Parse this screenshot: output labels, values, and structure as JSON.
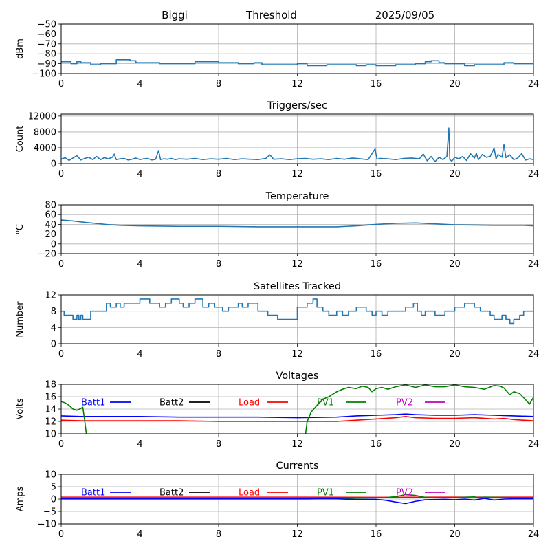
{
  "header": {
    "station": "Biggi",
    "subtitle": "Threshold",
    "date": "2025/09/05"
  },
  "chart_data": [
    {
      "id": "threshold",
      "type": "line",
      "title": "",
      "xlabel": "",
      "ylabel": "dBm",
      "xlim": [
        0,
        24
      ],
      "ylim": [
        -100,
        -50
      ],
      "xticks": [
        0,
        4,
        8,
        12,
        16,
        20,
        24
      ],
      "yticks": [
        -100,
        -90,
        -80,
        -70,
        -60,
        -50
      ],
      "ytick_labels": [
        "−100",
        "−90",
        "−80",
        "−70",
        "−60",
        "−50"
      ],
      "grid": true,
      "step": true,
      "series": [
        {
          "color": "#1f77b4",
          "x": [
            0,
            0.5,
            0.8,
            1.0,
            1.5,
            2.0,
            2.5,
            2.8,
            3.2,
            3.5,
            3.8,
            4.2,
            5.0,
            6.0,
            6.8,
            7.5,
            8.0,
            8.5,
            9.0,
            9.5,
            9.8,
            10.2,
            10.8,
            11.5,
            12.0,
            12.5,
            13.0,
            13.5,
            14.0,
            14.5,
            15.0,
            15.5,
            16.0,
            17.0,
            18.0,
            18.5,
            18.8,
            19.2,
            19.5,
            20.0,
            20.5,
            21.0,
            22.0,
            22.5,
            23.0,
            24.0
          ],
          "y": [
            -88,
            -90,
            -88,
            -89,
            -91,
            -90,
            -90,
            -86,
            -86,
            -87,
            -89,
            -89,
            -90,
            -90,
            -88,
            -88,
            -89,
            -89,
            -90,
            -90,
            -89,
            -91,
            -91,
            -91,
            -90,
            -92,
            -92,
            -91,
            -91,
            -91,
            -92,
            -91,
            -92,
            -91,
            -90,
            -88,
            -87,
            -89,
            -90,
            -90,
            -92,
            -91,
            -91,
            -89,
            -90,
            -90
          ]
        }
      ]
    },
    {
      "id": "triggers",
      "type": "line",
      "title": "Triggers/sec",
      "xlabel": "",
      "ylabel": "Count",
      "xlim": [
        0,
        24
      ],
      "ylim": [
        0,
        12500
      ],
      "xticks": [
        0,
        4,
        8,
        12,
        16,
        20,
        24
      ],
      "yticks": [
        0,
        4000,
        8000,
        12000
      ],
      "ytick_labels": [
        "0",
        "4000",
        "8000",
        "12000"
      ],
      "grid": true,
      "step": false,
      "series": [
        {
          "color": "#1f77b4",
          "x": [
            0,
            0.2,
            0.4,
            0.6,
            0.8,
            1.0,
            1.2,
            1.4,
            1.6,
            1.8,
            2.0,
            2.2,
            2.4,
            2.6,
            2.7,
            2.8,
            3.0,
            3.2,
            3.4,
            3.6,
            3.8,
            4.0,
            4.2,
            4.4,
            4.6,
            4.8,
            4.95,
            5.05,
            5.2,
            5.4,
            5.6,
            5.8,
            6.0,
            6.4,
            6.8,
            7.2,
            7.6,
            8.0,
            8.4,
            8.8,
            9.2,
            9.6,
            10.0,
            10.4,
            10.6,
            10.8,
            11.2,
            11.6,
            12.0,
            12.4,
            12.8,
            13.2,
            13.6,
            14.0,
            14.4,
            14.8,
            15.2,
            15.6,
            15.95,
            16.05,
            16.2,
            16.6,
            17.0,
            17.4,
            17.8,
            18.2,
            18.4,
            18.6,
            18.8,
            19.0,
            19.2,
            19.4,
            19.6,
            19.7,
            19.75,
            19.85,
            20.0,
            20.2,
            20.4,
            20.6,
            20.8,
            21.0,
            21.1,
            21.2,
            21.4,
            21.6,
            21.8,
            22.0,
            22.1,
            22.2,
            22.4,
            22.5,
            22.6,
            22.8,
            23.0,
            23.2,
            23.4,
            23.6,
            23.8,
            24.0
          ],
          "y": [
            1100,
            1500,
            800,
            1400,
            2000,
            900,
            1300,
            1600,
            1000,
            1800,
            1000,
            1500,
            1200,
            1600,
            2400,
            1000,
            1200,
            1300,
            900,
            1100,
            1400,
            1000,
            1200,
            1300,
            900,
            1100,
            3300,
            1000,
            1200,
            1100,
            1300,
            1000,
            1200,
            1100,
            1300,
            1000,
            1200,
            1100,
            1300,
            1000,
            1200,
            1100,
            1000,
            1300,
            2200,
            1100,
            1200,
            1000,
            1200,
            1300,
            1100,
            1200,
            1000,
            1300,
            1100,
            1400,
            1200,
            1000,
            3700,
            1100,
            1300,
            1200,
            1000,
            1300,
            1400,
            1200,
            2400,
            700,
            1800,
            500,
            1600,
            1000,
            1800,
            9000,
            1000,
            600,
            1600,
            1200,
            1800,
            800,
            2500,
            1400,
            2600,
            1000,
            2300,
            1600,
            1800,
            3900,
            1200,
            2300,
            1600,
            4800,
            1500,
            2200,
            1000,
            1400,
            2500,
            900,
            1200,
            1000
          ]
        }
      ]
    },
    {
      "id": "temperature",
      "type": "line",
      "title": "Temperature",
      "xlabel": "",
      "ylabel": "°C",
      "ylabel_sup": "o",
      "ylabel_main": "C",
      "xlim": [
        0,
        24
      ],
      "ylim": [
        -20,
        80
      ],
      "xticks": [
        0,
        4,
        8,
        12,
        16,
        20,
        24
      ],
      "yticks": [
        -20,
        0,
        20,
        40,
        60,
        80
      ],
      "ytick_labels": [
        "−20",
        "0",
        "20",
        "40",
        "60",
        "80"
      ],
      "grid": true,
      "step": false,
      "series": [
        {
          "color": "#1f77b4",
          "x": [
            0,
            0.3,
            0.6,
            1.0,
            1.5,
            2.0,
            2.5,
            3.0,
            4.0,
            6.0,
            8.0,
            10.0,
            12.0,
            14.0,
            15.0,
            16.0,
            16.5,
            17.0,
            18.0,
            19.0,
            20.0,
            22.0,
            23.5,
            24.0
          ],
          "y": [
            49,
            48,
            47,
            45,
            43,
            41,
            39,
            38,
            37,
            36,
            36,
            35,
            35,
            35,
            37,
            40,
            41,
            42,
            43,
            41,
            39,
            38,
            38,
            37
          ]
        }
      ]
    },
    {
      "id": "satellites",
      "type": "line",
      "title": "Satellites Tracked",
      "xlabel": "",
      "ylabel": "Number",
      "xlim": [
        0,
        24
      ],
      "ylim": [
        0,
        12
      ],
      "xticks": [
        0,
        4,
        8,
        12,
        16,
        20,
        24
      ],
      "yticks": [
        0,
        4,
        8,
        12
      ],
      "ytick_labels": [
        "0",
        "4",
        "8",
        "12"
      ],
      "grid": true,
      "step": true,
      "series": [
        {
          "color": "#1f77b4",
          "x": [
            0,
            0.15,
            0.6,
            0.8,
            0.9,
            1.0,
            1.1,
            1.5,
            2.0,
            2.3,
            2.5,
            2.8,
            3.0,
            3.2,
            3.5,
            4.0,
            4.5,
            5.0,
            5.3,
            5.6,
            6.0,
            6.2,
            6.5,
            6.8,
            7.2,
            7.5,
            7.8,
            8.2,
            8.5,
            8.8,
            9.0,
            9.2,
            9.5,
            10.0,
            10.5,
            11.0,
            11.5,
            12.0,
            12.5,
            12.8,
            13.0,
            13.3,
            13.6,
            14.0,
            14.3,
            14.6,
            15.0,
            15.5,
            15.8,
            16.0,
            16.3,
            16.6,
            17.0,
            17.5,
            17.9,
            18.1,
            18.3,
            18.5,
            19.0,
            19.5,
            20.0,
            20.5,
            21.0,
            21.3,
            21.8,
            22.0,
            22.4,
            22.6,
            22.8,
            23.0,
            23.3,
            23.5,
            24.0
          ],
          "y": [
            8,
            7,
            6,
            7,
            6,
            7,
            6,
            8,
            8,
            10,
            9,
            10,
            9,
            10,
            10,
            11,
            10,
            9,
            10,
            11,
            10,
            9,
            10,
            11,
            9,
            10,
            9,
            8,
            9,
            9,
            10,
            9,
            10,
            8,
            7,
            6,
            6,
            9,
            10,
            11,
            9,
            8,
            7,
            8,
            7,
            8,
            9,
            8,
            7,
            8,
            7,
            8,
            8,
            9,
            10,
            8,
            7,
            8,
            7,
            8,
            9,
            10,
            9,
            8,
            7,
            6,
            7,
            6,
            5,
            6,
            7,
            8,
            8
          ]
        }
      ]
    },
    {
      "id": "voltages",
      "type": "line",
      "title": "Voltages",
      "xlabel": "",
      "ylabel": "Volts",
      "xlim": [
        0,
        24
      ],
      "ylim": [
        10,
        18
      ],
      "xticks": [
        0,
        4,
        8,
        12,
        16,
        20,
        24
      ],
      "yticks": [
        10,
        12,
        14,
        16,
        18
      ],
      "ytick_labels": [
        "10",
        "12",
        "14",
        "16",
        "18"
      ],
      "grid": true,
      "step": false,
      "legend": [
        {
          "name": "Batt1",
          "color": "#0000ff"
        },
        {
          "name": "Batt2",
          "color": "#000000"
        },
        {
          "name": "Load",
          "color": "#ff0000"
        },
        {
          "name": "PV1",
          "color": "#008000"
        },
        {
          "name": "PV2",
          "color": "#c000c0"
        }
      ],
      "series": [
        {
          "name": "Batt1",
          "color": "#0000ff",
          "x": [
            0,
            1,
            2,
            4,
            6,
            8,
            10,
            12,
            14,
            15,
            16,
            17,
            17.5,
            18,
            19,
            20,
            21,
            22,
            23,
            24
          ],
          "y": [
            12.9,
            12.8,
            12.8,
            12.8,
            12.7,
            12.7,
            12.7,
            12.6,
            12.7,
            12.9,
            13.0,
            13.1,
            13.2,
            13.1,
            13.0,
            13.0,
            13.1,
            13.0,
            12.9,
            12.8
          ]
        },
        {
          "name": "Load",
          "color": "#ff0000",
          "x": [
            0,
            1,
            2,
            4,
            6,
            8,
            10,
            12,
            14,
            15,
            16,
            17,
            17.5,
            18,
            19,
            20,
            21,
            22,
            22.5,
            23,
            24
          ],
          "y": [
            12.2,
            12.1,
            12.1,
            12.1,
            12.1,
            12.0,
            12.0,
            12.0,
            12.0,
            12.2,
            12.4,
            12.6,
            12.8,
            12.6,
            12.5,
            12.5,
            12.6,
            12.4,
            12.5,
            12.3,
            12.1
          ]
        },
        {
          "name": "PV1",
          "color": "#008000",
          "x": [
            0,
            0.2,
            0.4,
            0.6,
            0.8,
            1.0,
            1.1,
            1.2,
            1.3,
            12.4,
            12.5,
            12.7,
            13.0,
            13.3,
            13.6,
            14.0,
            14.3,
            14.6,
            15.0,
            15.3,
            15.6,
            15.8,
            16.0,
            16.3,
            16.6,
            17.0,
            17.5,
            18.0,
            18.5,
            19.0,
            19.5,
            20.0,
            20.5,
            21.0,
            21.5,
            22.0,
            22.3,
            22.5,
            22.8,
            23.0,
            23.3,
            23.6,
            23.8,
            24.0
          ],
          "y": [
            15.2,
            15.0,
            14.6,
            14.0,
            13.8,
            14.1,
            14.3,
            12.0,
            9.5,
            9.5,
            12.0,
            13.5,
            14.6,
            15.6,
            16.0,
            16.8,
            17.2,
            17.5,
            17.3,
            17.7,
            17.5,
            16.8,
            17.3,
            17.5,
            17.2,
            17.6,
            17.9,
            17.5,
            17.9,
            17.6,
            17.6,
            17.9,
            17.6,
            17.5,
            17.2,
            17.8,
            17.7,
            17.4,
            16.3,
            16.8,
            16.5,
            15.5,
            14.8,
            15.9
          ]
        }
      ]
    },
    {
      "id": "currents",
      "type": "line",
      "title": "Currents",
      "xlabel": "",
      "ylabel": "Amps",
      "xlim": [
        0,
        24
      ],
      "ylim": [
        -10,
        10
      ],
      "xticks": [
        0,
        4,
        8,
        12,
        16,
        20,
        24
      ],
      "yticks": [
        -10,
        -5,
        0,
        5,
        10
      ],
      "ytick_labels": [
        "−10",
        "−5",
        "0",
        "5",
        "10"
      ],
      "grid": true,
      "step": false,
      "legend": [
        {
          "name": "Batt1",
          "color": "#0000ff"
        },
        {
          "name": "Batt2",
          "color": "#000000"
        },
        {
          "name": "Load",
          "color": "#ff0000"
        },
        {
          "name": "PV1",
          "color": "#008000"
        },
        {
          "name": "PV2",
          "color": "#c000c0"
        }
      ],
      "series": [
        {
          "name": "Load",
          "color": "#ff0000",
          "x": [
            0,
            4,
            8,
            12,
            16,
            20,
            24
          ],
          "y": [
            0.8,
            0.8,
            0.8,
            0.8,
            0.7,
            0.8,
            0.8
          ]
        },
        {
          "name": "PV1",
          "color": "#008000",
          "x": [
            0,
            12.5,
            16,
            16.5,
            17,
            17.5,
            18,
            18.5,
            19,
            20,
            21,
            21.2,
            21.5,
            22,
            23,
            24
          ],
          "y": [
            0,
            0,
            0.5,
            0.6,
            1.0,
            1.8,
            1.5,
            0.7,
            0.6,
            0.6,
            0.9,
            0.6,
            0.8,
            0.7,
            0.6,
            0.5
          ]
        },
        {
          "name": "Batt1",
          "color": "#0000ff",
          "x": [
            0,
            4,
            8,
            12,
            14,
            15,
            16,
            16.5,
            17,
            17.5,
            18,
            18.5,
            19,
            19.5,
            20,
            20.5,
            21,
            21.5,
            22,
            22.5,
            23,
            24
          ],
          "y": [
            0.2,
            0.2,
            0.2,
            0.2,
            0.1,
            -0.2,
            -0.1,
            -0.5,
            -1.2,
            -1.8,
            -0.9,
            -0.3,
            -0.2,
            -0.1,
            -0.3,
            0.0,
            -0.4,
            0.3,
            -0.4,
            0.0,
            0.1,
            0.1
          ]
        }
      ]
    }
  ]
}
